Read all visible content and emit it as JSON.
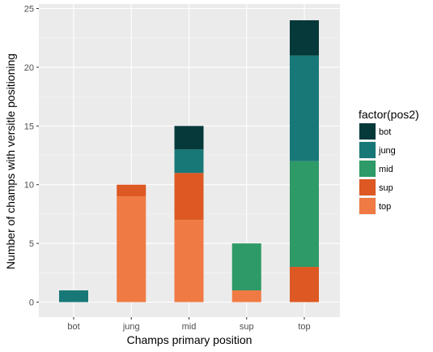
{
  "chart_data": {
    "type": "bar",
    "stacked": true,
    "categories": [
      "bot",
      "jung",
      "mid",
      "sup",
      "top"
    ],
    "series": [
      {
        "name": "bot",
        "color": "#06393A",
        "values": [
          0,
          0,
          2,
          0,
          3
        ]
      },
      {
        "name": "jung",
        "color": "#187878",
        "values": [
          1,
          0,
          2,
          0,
          9
        ]
      },
      {
        "name": "mid",
        "color": "#2E9A67",
        "values": [
          0,
          0,
          0,
          4,
          9
        ]
      },
      {
        "name": "sup",
        "color": "#DD5822",
        "values": [
          0,
          1,
          4,
          0,
          3
        ]
      },
      {
        "name": "top",
        "color": "#F07A43",
        "values": [
          0,
          9,
          7,
          1,
          0
        ]
      }
    ],
    "xlabel": "Champs primary position",
    "ylabel": "Number of champs with versitle positioning",
    "ylim": [
      0,
      25
    ],
    "yticks": [
      0,
      5,
      10,
      15,
      20,
      25
    ],
    "legend_title": "factor(pos2)",
    "legend_position": "right",
    "panel_background": "#EBEBEB",
    "grid": true
  }
}
